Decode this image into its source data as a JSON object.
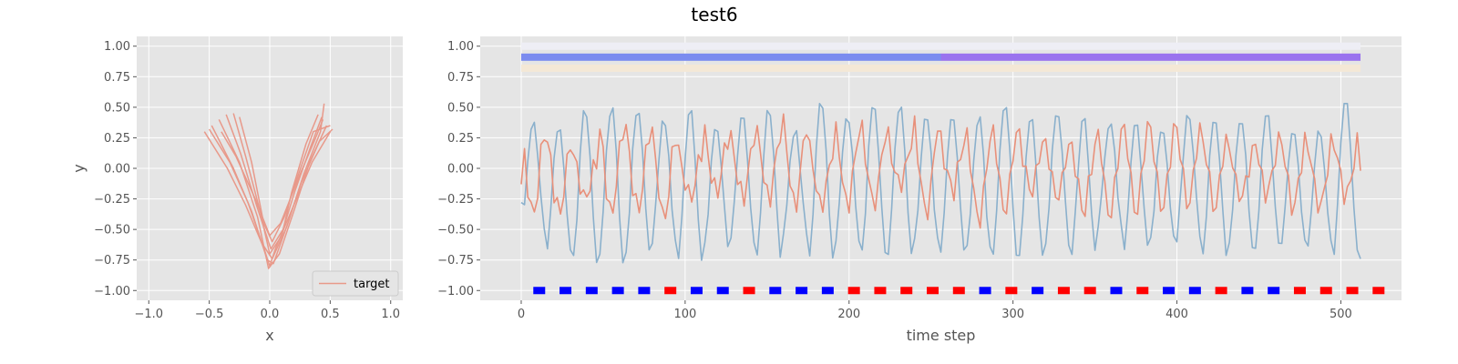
{
  "title": "test6",
  "colors": {
    "background": "#E5E5E5",
    "grid": "#FFFFFF",
    "target": "#E8998A",
    "blue_series": "#8AB0CC",
    "red_series": "#E8907A",
    "bar_blue": "#7B8CEF",
    "bar_purple": "#9A73EE",
    "bar_top_band": "#EEEEF5",
    "bar_bottom_band": "#F4E8D6",
    "marker_blue": "#0000FF",
    "marker_red": "#FF0000"
  },
  "chart_data": [
    {
      "type": "line",
      "xlabel": "x",
      "ylabel": "y",
      "xlim": [
        -1.1,
        1.1
      ],
      "ylim": [
        -1.08,
        1.08
      ],
      "xticks": [
        -1.0,
        -0.5,
        0.0,
        0.5,
        1.0
      ],
      "xtick_labels": [
        "−1.0",
        "−0.5",
        "0.0",
        "0.5",
        "1.0"
      ],
      "yticks": [
        -1.0,
        -0.75,
        -0.5,
        -0.25,
        0.0,
        0.25,
        0.5,
        0.75,
        1.0
      ],
      "ytick_labels": [
        "−1.00",
        "−0.75",
        "−0.50",
        "−0.25",
        "0.00",
        "0.25",
        "0.50",
        "0.75",
        "1.00"
      ],
      "grid": true,
      "legend": {
        "entries": [
          "target"
        ],
        "position": "lower-right"
      },
      "series": [
        {
          "name": "target",
          "description_points": "V-shaped bundle of strokes",
          "strokes": [
            [
              [
                -0.54,
                0.3
              ],
              [
                -0.35,
                0.0
              ],
              [
                -0.2,
                -0.3
              ],
              [
                -0.05,
                -0.65
              ],
              [
                0.0,
                -0.8
              ],
              [
                0.05,
                -0.65
              ],
              [
                0.2,
                -0.3
              ],
              [
                0.35,
                0.05
              ],
              [
                0.5,
                0.3
              ]
            ],
            [
              [
                -0.48,
                0.35
              ],
              [
                -0.3,
                0.0
              ],
              [
                -0.15,
                -0.35
              ],
              [
                -0.02,
                -0.75
              ],
              [
                0.03,
                -0.78
              ],
              [
                0.15,
                -0.45
              ],
              [
                0.28,
                -0.05
              ],
              [
                0.42,
                0.3
              ],
              [
                0.45,
                0.53
              ]
            ],
            [
              [
                -0.42,
                0.4
              ],
              [
                -0.25,
                0.05
              ],
              [
                -0.1,
                -0.4
              ],
              [
                -0.01,
                -0.82
              ],
              [
                0.08,
                -0.7
              ],
              [
                0.2,
                -0.35
              ],
              [
                0.33,
                0.05
              ],
              [
                0.47,
                0.35
              ]
            ],
            [
              [
                -0.3,
                0.45
              ],
              [
                -0.2,
                0.1
              ],
              [
                -0.08,
                -0.35
              ],
              [
                0.0,
                -0.7
              ],
              [
                0.1,
                -0.55
              ],
              [
                0.18,
                -0.2
              ],
              [
                0.3,
                0.2
              ],
              [
                0.4,
                0.44
              ]
            ],
            [
              [
                -0.25,
                0.42
              ],
              [
                -0.15,
                0.05
              ],
              [
                -0.05,
                -0.45
              ],
              [
                0.02,
                -0.6
              ],
              [
                0.12,
                -0.4
              ],
              [
                0.22,
                -0.1
              ],
              [
                0.36,
                0.3
              ],
              [
                0.5,
                0.35
              ]
            ],
            [
              [
                -0.4,
                0.3
              ],
              [
                -0.28,
                0.1
              ],
              [
                -0.12,
                -0.25
              ],
              [
                0.0,
                -0.55
              ],
              [
                0.09,
                -0.45
              ],
              [
                0.25,
                -0.05
              ],
              [
                0.38,
                0.25
              ],
              [
                0.44,
                0.4
              ]
            ],
            [
              [
                -0.5,
                0.32
              ],
              [
                -0.33,
                0.05
              ],
              [
                -0.18,
                -0.28
              ],
              [
                -0.06,
                -0.62
              ],
              [
                0.02,
                -0.74
              ],
              [
                0.14,
                -0.48
              ],
              [
                0.26,
                -0.12
              ],
              [
                0.41,
                0.22
              ],
              [
                0.52,
                0.32
              ]
            ],
            [
              [
                -0.36,
                0.44
              ],
              [
                -0.24,
                0.12
              ],
              [
                -0.11,
                -0.3
              ],
              [
                0.01,
                -0.66
              ],
              [
                0.11,
                -0.5
              ],
              [
                0.21,
                -0.18
              ],
              [
                0.34,
                0.18
              ],
              [
                0.43,
                0.42
              ]
            ]
          ]
        }
      ]
    },
    {
      "type": "line",
      "xlabel": "time step",
      "ylabel": "",
      "xlim": [
        -25,
        537
      ],
      "ylim": [
        -1.08,
        1.08
      ],
      "xticks": [
        0,
        100,
        200,
        300,
        400,
        500
      ],
      "xtick_labels": [
        "0",
        "100",
        "200",
        "300",
        "400",
        "500"
      ],
      "yticks": [
        -1.0,
        -0.75,
        -0.5,
        -0.25,
        0.0,
        0.25,
        0.5,
        0.75,
        1.0
      ],
      "ytick_labels": [
        "−1.00",
        "−0.75",
        "−0.50",
        "−0.25",
        "0.00",
        "0.25",
        "0.50",
        "0.75",
        "1.00"
      ],
      "grid": true,
      "series": [
        {
          "name": "",
          "kind": "oscillation",
          "x_range": [
            0,
            512
          ],
          "approx_period": 16,
          "min": -0.82,
          "max": 0.53,
          "start_value": -0.28,
          "end_value": -0.74
        },
        {
          "name": "",
          "kind": "oscillation",
          "x_range": [
            0,
            512
          ],
          "approx_period": 16,
          "min": -0.55,
          "max": 0.5,
          "start_value": -0.13,
          "end_value": -0.02
        }
      ],
      "bands": [
        {
          "y": 1.0,
          "x_range": [
            0,
            512
          ],
          "color_key": "bar_top_band"
        },
        {
          "y": 0.91,
          "x_range": [
            0,
            256
          ],
          "color_key": "bar_blue"
        },
        {
          "y": 0.91,
          "x_range": [
            256,
            512
          ],
          "color_key": "bar_purple"
        },
        {
          "y": 0.82,
          "x_range": [
            0,
            512
          ],
          "color_key": "bar_bottom_band"
        }
      ],
      "markers": {
        "y": -1.0,
        "start": 11,
        "step": 16,
        "sequence": [
          "b",
          "b",
          "b",
          "b",
          "b",
          "r",
          "b",
          "b",
          "r",
          "b",
          "b",
          "b",
          "r",
          "r",
          "r",
          "r",
          "r",
          "b",
          "r",
          "b",
          "r",
          "r",
          "b",
          "r",
          "b",
          "b",
          "r",
          "b",
          "b",
          "r",
          "r",
          "r",
          "r"
        ]
      }
    }
  ]
}
